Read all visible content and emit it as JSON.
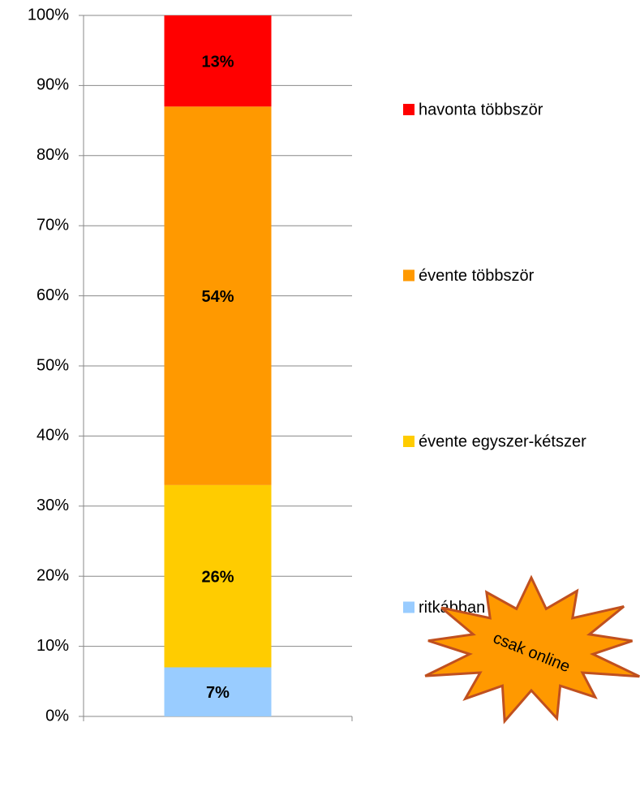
{
  "chart_data": {
    "type": "stacked_bar",
    "categories": [
      null
    ],
    "series": [
      {
        "name": "ritkábban",
        "color": "#99ccff",
        "values": [
          7
        ],
        "value_labels": [
          "7%"
        ]
      },
      {
        "name": "évente egyszer-kétszer",
        "color": "#ffcc00",
        "values": [
          26
        ],
        "value_labels": [
          "26%"
        ]
      },
      {
        "name": "évente többször",
        "color": "#ff9900",
        "values": [
          54
        ],
        "value_labels": [
          "54%"
        ]
      },
      {
        "name": "havonta többször",
        "color": "#ff0000",
        "values": [
          13
        ],
        "value_labels": [
          "13%"
        ]
      }
    ],
    "ylim": [
      0,
      100
    ],
    "yticks": [
      {
        "value": 0,
        "label": "0%"
      },
      {
        "value": 10,
        "label": "10%"
      },
      {
        "value": 20,
        "label": "20%"
      },
      {
        "value": 30,
        "label": "30%"
      },
      {
        "value": 40,
        "label": "40%"
      },
      {
        "value": 50,
        "label": "50%"
      },
      {
        "value": 60,
        "label": "60%"
      },
      {
        "value": 70,
        "label": "70%"
      },
      {
        "value": 80,
        "label": "80%"
      },
      {
        "value": 90,
        "label": "90%"
      },
      {
        "value": 100,
        "label": "100%"
      }
    ],
    "grid": true,
    "legend": "right",
    "annotation": "csak online"
  }
}
